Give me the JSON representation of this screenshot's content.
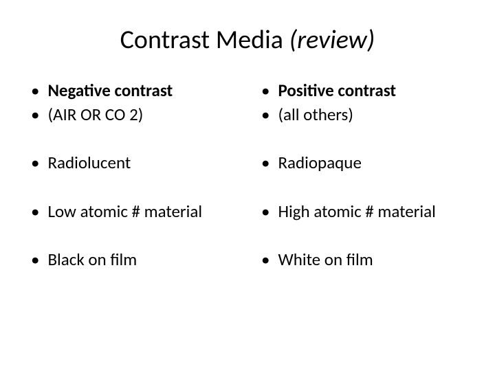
{
  "title": {
    "main": "Contrast Media  ",
    "italic": "(review)"
  },
  "left": {
    "header": "Negative contrast",
    "sub": "(AIR OR CO 2)",
    "items": [
      "Radiolucent",
      "Low atomic # material",
      "Black on film"
    ]
  },
  "right": {
    "header": "Positive contrast",
    "sub": "(all others)",
    "items": [
      "Radiopaque",
      "High atomic # material",
      "White on film"
    ]
  },
  "styling": {
    "background_color": "#ffffff",
    "text_color": "#000000",
    "title_fontsize": 38,
    "body_fontsize": 25,
    "font_family": "Calibri"
  }
}
